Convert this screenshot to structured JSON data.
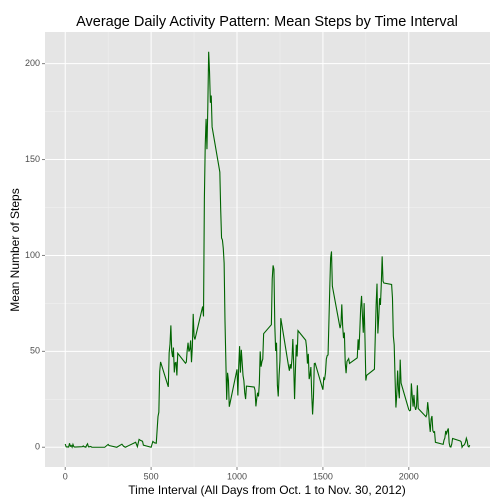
{
  "chart_data": {
    "type": "line",
    "title": "Average Daily Activity Pattern: Mean Steps by Time Interval",
    "xlabel": "Time Interval (All Days from Oct. 1 to Nov. 30, 2012)",
    "ylabel": "Mean Number of Steps",
    "color": "#006400",
    "grid": true,
    "xlim": [
      -117.75,
      2472.75
    ],
    "xticks": [
      0,
      500,
      1000,
      1500,
      2000
    ],
    "ylim": [
      -10.3,
      216.5
    ],
    "yticks": [
      0,
      50,
      100,
      150,
      200
    ],
    "x": [
      0,
      5,
      10,
      15,
      20,
      25,
      30,
      35,
      40,
      45,
      50,
      55,
      100,
      105,
      110,
      115,
      120,
      125,
      130,
      135,
      140,
      145,
      150,
      155,
      200,
      230,
      250,
      255,
      300,
      330,
      340,
      350,
      410,
      420,
      430,
      440,
      450,
      455,
      500,
      510,
      520,
      530,
      540,
      545,
      550,
      555,
      600,
      605,
      610,
      615,
      620,
      625,
      630,
      635,
      640,
      645,
      650,
      655,
      700,
      705,
      710,
      715,
      720,
      725,
      730,
      735,
      740,
      745,
      750,
      755,
      800,
      805,
      810,
      815,
      820,
      825,
      830,
      835,
      840,
      845,
      850,
      855,
      900,
      905,
      910,
      915,
      920,
      925,
      930,
      935,
      940,
      945,
      950,
      955,
      1000,
      1005,
      1010,
      1015,
      1020,
      1025,
      1030,
      1035,
      1040,
      1045,
      1050,
      1055,
      1100,
      1105,
      1110,
      1115,
      1120,
      1125,
      1130,
      1135,
      1140,
      1145,
      1150,
      1155,
      1200,
      1205,
      1210,
      1215,
      1220,
      1225,
      1230,
      1235,
      1240,
      1245,
      1250,
      1255,
      1300,
      1305,
      1310,
      1315,
      1320,
      1325,
      1330,
      1335,
      1340,
      1345,
      1350,
      1355,
      1400,
      1405,
      1410,
      1415,
      1420,
      1425,
      1430,
      1435,
      1440,
      1445,
      1450,
      1455,
      1500,
      1505,
      1510,
      1515,
      1520,
      1525,
      1530,
      1535,
      1540,
      1545,
      1550,
      1555,
      1600,
      1605,
      1610,
      1615,
      1620,
      1625,
      1630,
      1635,
      1640,
      1645,
      1650,
      1655,
      1700,
      1705,
      1710,
      1715,
      1720,
      1725,
      1730,
      1735,
      1740,
      1745,
      1750,
      1755,
      1800,
      1805,
      1810,
      1815,
      1820,
      1825,
      1830,
      1835,
      1840,
      1845,
      1850,
      1855,
      1900,
      1905,
      1910,
      1915,
      1920,
      1925,
      1930,
      1935,
      1940,
      1945,
      1950,
      1955,
      2000,
      2005,
      2010,
      2015,
      2020,
      2025,
      2030,
      2035,
      2040,
      2045,
      2050,
      2055,
      2100,
      2105,
      2110,
      2115,
      2120,
      2125,
      2130,
      2135,
      2140,
      2145,
      2150,
      2155,
      2200,
      2205,
      2210,
      2215,
      2220,
      2225,
      2230,
      2235,
      2240,
      2245,
      2250,
      2255,
      2300,
      2305,
      2310,
      2315,
      2320,
      2325,
      2330,
      2335,
      2340,
      2345,
      2350,
      2355
    ],
    "values": [
      1.7,
      0.3,
      0.1,
      0.2,
      0.1,
      2.1,
      0.5,
      0.9,
      0,
      1.5,
      0.3,
      0.1,
      0.3,
      0.7,
      0.2,
      0.3,
      0,
      1.1,
      1.8,
      0.2,
      0.2,
      0.4,
      0.3,
      0,
      0,
      0,
      1.5,
      0.9,
      0,
      1.6,
      0.5,
      0,
      2.6,
      0.3,
      4.1,
      3.5,
      3.1,
      1.1,
      0,
      3,
      2.3,
      2.1,
      16,
      18.3,
      39.5,
      44.5,
      31.5,
      49.3,
      53.8,
      63.5,
      50,
      47,
      52,
      39,
      44,
      44.2,
      37.4,
      49,
      43.8,
      44.4,
      50.5,
      54.5,
      49.9,
      51,
      55.7,
      44.3,
      52.3,
      69.5,
      57.8,
      56.2,
      73.4,
      68.2,
      129.4,
      157.5,
      171.2,
      155.4,
      177.3,
      206.2,
      195.9,
      179.6,
      183.4,
      167,
      143.5,
      124,
      109.1,
      108.1,
      103.7,
      96,
      66.2,
      45.2,
      24.8,
      38.8,
      35,
      21.1,
      40.6,
      27,
      42.4,
      52.7,
      38.9,
      50.8,
      44.3,
      37.4,
      34.7,
      28.3,
      25.1,
      31.9,
      31.4,
      29.7,
      21.3,
      25.5,
      28.4,
      26.5,
      33.4,
      50,
      42,
      44.6,
      46,
      59.2,
      63.9,
      87.7,
      94.8,
      92.8,
      63.4,
      50.2,
      54.5,
      32.4,
      26.5,
      37.7,
      45.1,
      67.3,
      42.3,
      39.9,
      43.3,
      41,
      46.2,
      56.4,
      42.8,
      25.1,
      40,
      53.5,
      47.3,
      60.8,
      55.8,
      52,
      43.6,
      48.7,
      35.5,
      37.5,
      41.8,
      27.5,
      17.1,
      26.1,
      43.6,
      43.8,
      30,
      36.1,
      35.5,
      38.8,
      46,
      47.8,
      48.1,
      65.3,
      82.9,
      98.7,
      102.1,
      84,
      62.1,
      64.1,
      74.5,
      63.2,
      56.9,
      59.8,
      43.9,
      38.6,
      44.7,
      45.5,
      46.2,
      43.7,
      46.6,
      56.3,
      50.7,
      61.2,
      72.7,
      78.9,
      68.9,
      59.7,
      75.1,
      56.5,
      34.8,
      37.5,
      40.7,
      58,
      74.7,
      85.3,
      59.3,
      67.8,
      77.7,
      74.2,
      85.3,
      99.5,
      86.6,
      85.6,
      84.9,
      77.8,
      58,
      53.4,
      36.3,
      20.7,
      27.4,
      40,
      30.2,
      25.5,
      45.7,
      33.5,
      19.6,
      19,
      19.3,
      33.3,
      26.8,
      21.2,
      27.3,
      21.3,
      19.5,
      21.3,
      32.3,
      20.2,
      15.9,
      17.2,
      23.5,
      19.2,
      12.5,
      8,
      14.7,
      16.3,
      8.7,
      7.8,
      8.1,
      2.6,
      1.5,
      3.7,
      4.8,
      8.5,
      7.1,
      8.7,
      9.8,
      2.2,
      0.3,
      0.1,
      1.6,
      4.6,
      3.3,
      2.8,
      0,
      0.8,
      1,
      1.6,
      2.6,
      4.7,
      3.3,
      0.6,
      0.2,
      1.1
    ]
  }
}
